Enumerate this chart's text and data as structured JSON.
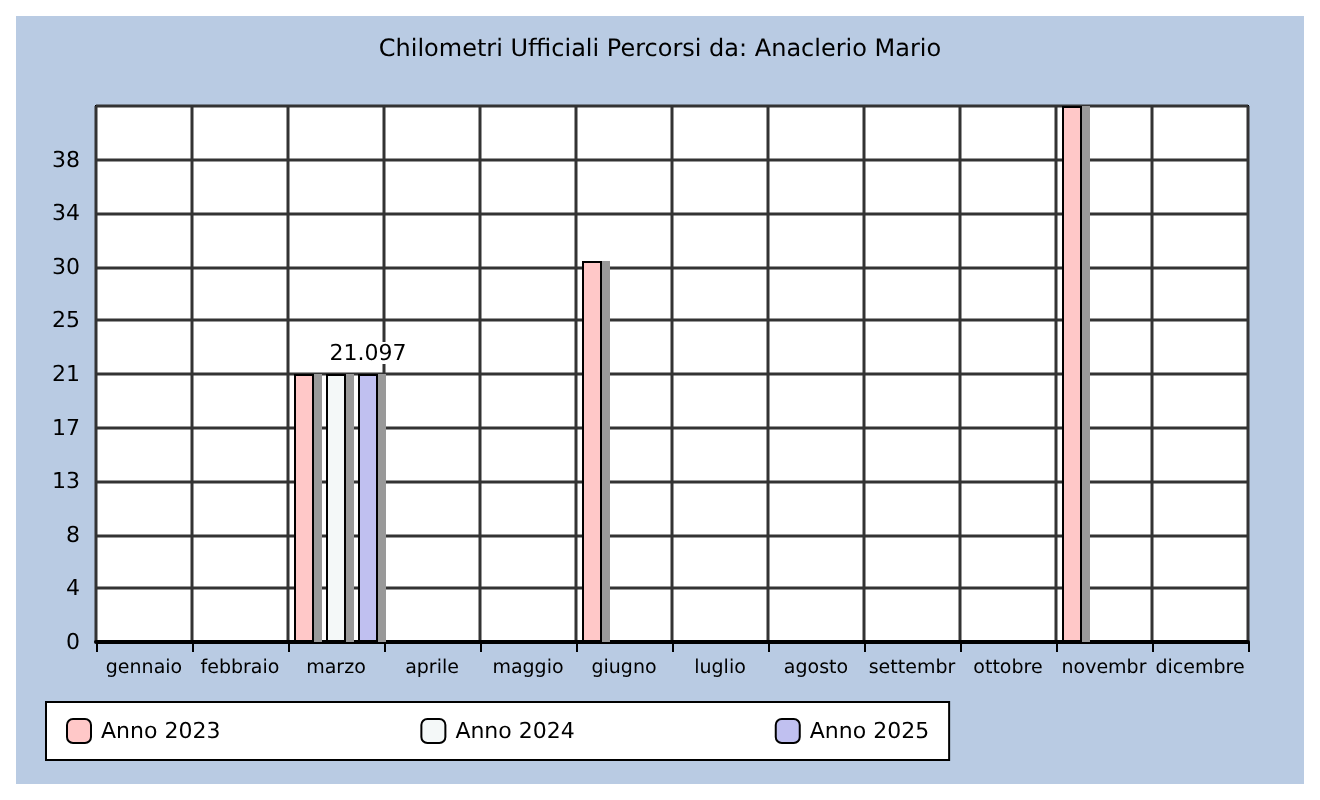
{
  "chart_data": {
    "type": "bar",
    "title": "Chilometri Ufficiali Percorsi da: Anaclerio Mario",
    "categories": [
      "gennaio",
      "febbraio",
      "marzo",
      "aprile",
      "maggio",
      "giugno",
      "luglio",
      "agosto",
      "settembr",
      "ottobre",
      "novembr",
      "dicembre"
    ],
    "series": [
      {
        "name": "Anno 2023",
        "color": "#ffc8c8",
        "values": [
          null,
          null,
          21.1,
          null,
          null,
          30,
          null,
          null,
          null,
          null,
          42.195,
          null
        ]
      },
      {
        "name": "Anno 2024",
        "color": "#f4f8f8",
        "values": [
          null,
          null,
          21.1,
          null,
          null,
          null,
          null,
          null,
          null,
          null,
          null,
          null
        ]
      },
      {
        "name": "Anno 2025",
        "color": "#c0c0f0",
        "values": [
          null,
          null,
          21.097,
          null,
          null,
          null,
          null,
          null,
          null,
          null,
          null,
          null
        ],
        "value_labels": [
          null,
          null,
          "21.097",
          null,
          null,
          null,
          null,
          null,
          null,
          null,
          null,
          null
        ]
      }
    ],
    "ylim": [
      0,
      42.195
    ],
    "yticks": [
      0,
      {
        "value": 4.2195,
        "label": "4"
      },
      {
        "value": 8.439,
        "label": "8"
      },
      {
        "value": 12.6585,
        "label": "13"
      },
      {
        "value": 16.878,
        "label": "17"
      },
      {
        "value": 21.0975,
        "label": "21"
      },
      {
        "value": 25.317,
        "label": "25"
      },
      {
        "value": 29.5365,
        "label": "30"
      },
      {
        "value": 33.756,
        "label": "34"
      },
      {
        "value": 37.9755,
        "label": "38"
      },
      {
        "value": 42.195,
        "label": null
      }
    ],
    "grid": true,
    "legend": "bottom"
  }
}
